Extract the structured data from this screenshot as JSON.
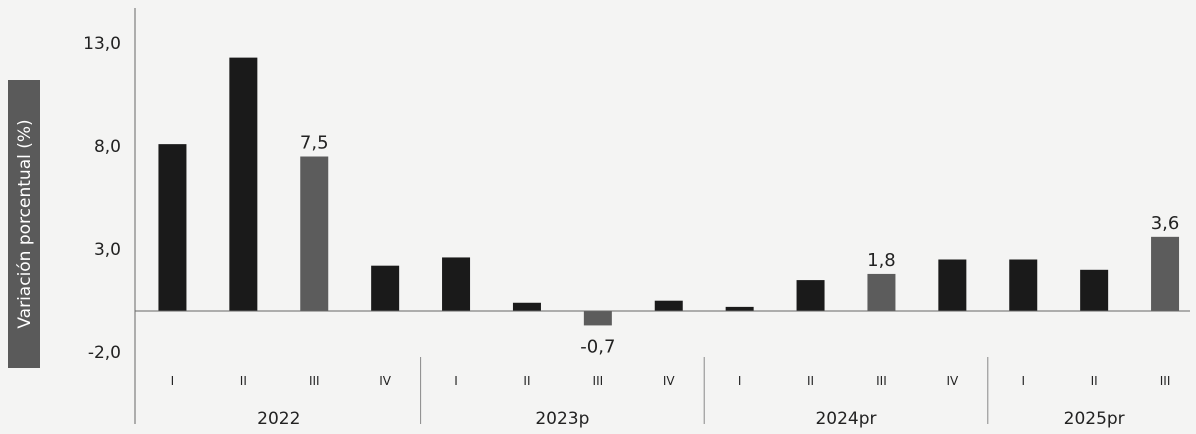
{
  "chart_data": {
    "type": "bar",
    "ylabel": "Variación porcentual (%)",
    "y_ticks": [
      "13,0",
      "8,0",
      "3,0",
      "-2,0"
    ],
    "y_tick_values": [
      13,
      8,
      3,
      -2
    ],
    "ylim": [
      -2,
      15
    ],
    "groups": [
      {
        "label": "2022",
        "categories": [
          "I",
          "II",
          "III",
          "IV"
        ]
      },
      {
        "label": "2023p",
        "categories": [
          "I",
          "II",
          "III",
          "IV"
        ]
      },
      {
        "label": "2024pr",
        "categories": [
          "I",
          "II",
          "III",
          "IV"
        ]
      },
      {
        "label": "2025pr",
        "categories": [
          "I",
          "II",
          "III"
        ]
      }
    ],
    "values": [
      8.1,
      12.3,
      7.5,
      2.2,
      2.6,
      0.4,
      -0.7,
      0.5,
      0.2,
      1.5,
      1.8,
      2.5,
      2.5,
      2.0,
      3.6
    ],
    "highlighted_index": [
      2,
      6,
      10,
      14
    ],
    "data_labels": [
      {
        "index": 2,
        "text": "7,5"
      },
      {
        "index": 6,
        "text": "-0,7"
      },
      {
        "index": 10,
        "text": "1,8"
      },
      {
        "index": 14,
        "text": "3,6"
      }
    ],
    "colors": {
      "bar": "#1a1a1a",
      "highlight": "#5c5c5c",
      "axis": "#666666",
      "ylabel_bg": "#5a5a5a"
    },
    "grid": false
  }
}
